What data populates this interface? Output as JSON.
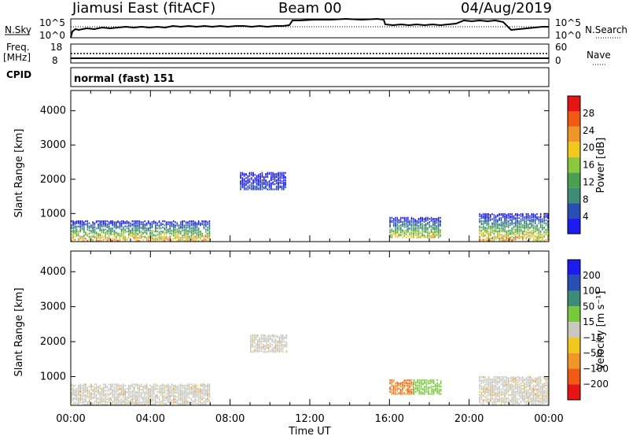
{
  "header": {
    "station": "Jiamusi East (fitACF)",
    "beam": "Beam 00",
    "date": "04/Aug/2019"
  },
  "noise_panel": {
    "left_label": "N.Sky",
    "right_label": "N.Search",
    "y_ticks_left": [
      "10^5",
      "10^0"
    ],
    "y_ticks_right": [
      "10^5",
      "10^0"
    ]
  },
  "freq_panel": {
    "left_label_1": "Freq.",
    "left_label_2": "[MHz]",
    "left_ticks": [
      "18",
      "8"
    ],
    "right_label": "Nave",
    "right_ticks": [
      "60",
      "0"
    ],
    "cpid_label": "CPID",
    "cpid_value": "normal (fast) 151"
  },
  "colors": {
    "power_scale": [
      "#1c1cf0",
      "#2850b4",
      "#3c8c78",
      "#4aa050",
      "#8cc83c",
      "#f0c81e",
      "#f09628",
      "#f05a14",
      "#e61414"
    ],
    "velocity_scale": [
      "#1c1cf0",
      "#2850b4",
      "#3c8c78",
      "#78c83c",
      "#c8c8c0",
      "#f0c81e",
      "#f09628",
      "#f05a14",
      "#e61414"
    ],
    "ground_scatter": "#c8c8c0"
  },
  "chart_data": [
    {
      "type": "heatmap",
      "title": "Power",
      "ylabel": "Slant Range [km]",
      "xlabel": "",
      "ylim": [
        180,
        4590
      ],
      "y_ticks": [
        "1000",
        "2000",
        "3000",
        "4000"
      ],
      "colorbar_label": "Power [dB]",
      "colorbar_ticks": [
        "4",
        "8",
        "12",
        "16",
        "20",
        "24",
        "28"
      ],
      "colorbar_range": [
        0,
        32
      ],
      "regions": [
        {
          "t_start": 0.0,
          "t_end": 7.0,
          "r_low": 200,
          "r_high": 800,
          "level": "mixed",
          "peak_db": 28
        },
        {
          "t_start": 8.5,
          "t_end": 10.8,
          "r_low": 1700,
          "r_high": 2200,
          "level": "low",
          "peak_db": 6
        },
        {
          "t_start": 16.0,
          "t_end": 18.6,
          "r_low": 300,
          "r_high": 900,
          "level": "medium",
          "peak_db": 24
        },
        {
          "t_start": 20.5,
          "t_end": 24.0,
          "r_low": 200,
          "r_high": 1000,
          "level": "mixed",
          "peak_db": 28
        }
      ]
    },
    {
      "type": "heatmap",
      "title": "Velocity",
      "ylabel": "Slant Range [km]",
      "xlabel": "Time UT",
      "ylim": [
        180,
        4590
      ],
      "y_ticks": [
        "1000",
        "2000",
        "3000",
        "4000"
      ],
      "x_ticks": [
        "00:00",
        "04:00",
        "08:00",
        "12:00",
        "16:00",
        "20:00",
        "00:00"
      ],
      "colorbar_label": "Velocity [m s⁻¹]",
      "colorbar_ticks": [
        "200",
        "100",
        "50",
        "15",
        "−15",
        "−50",
        "−100",
        "−200"
      ],
      "regions": [
        {
          "t_start": 0.0,
          "t_end": 7.0,
          "r_low": 200,
          "r_high": 800,
          "class": "ground scatter"
        },
        {
          "t_start": 9.0,
          "t_end": 10.8,
          "r_low": 1700,
          "r_high": 2200,
          "class": "ground scatter"
        },
        {
          "t_start": 16.0,
          "t_end": 17.2,
          "r_low": 500,
          "r_high": 900,
          "velocity": -100
        },
        {
          "t_start": 17.2,
          "t_end": 18.6,
          "r_low": 500,
          "r_high": 900,
          "velocity": 50
        },
        {
          "t_start": 20.5,
          "t_end": 24.0,
          "r_low": 200,
          "r_high": 1000,
          "class": "ground scatter"
        }
      ]
    }
  ]
}
